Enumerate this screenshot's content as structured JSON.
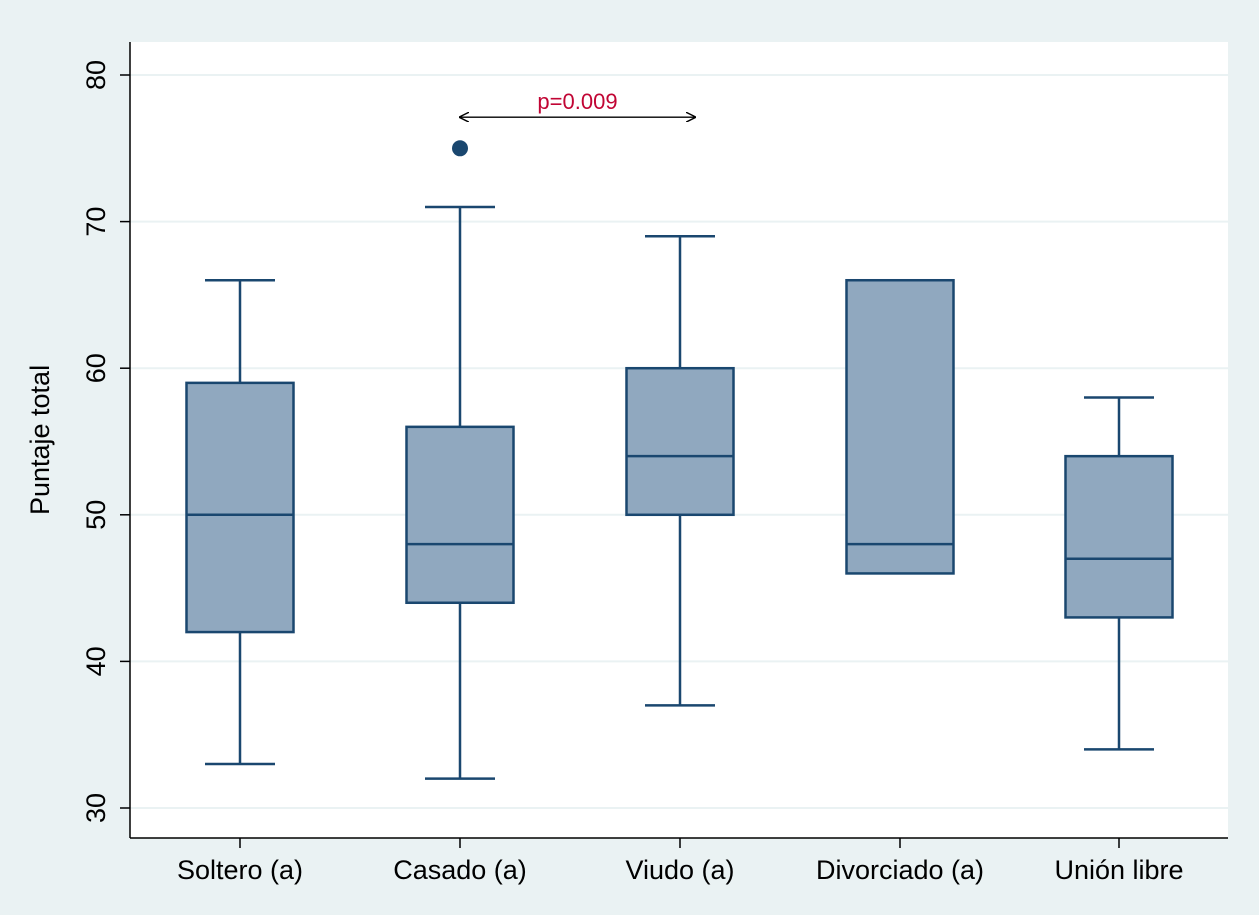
{
  "chart_data": {
    "type": "box",
    "title": "",
    "xlabel": "",
    "ylabel": "Puntaje total",
    "ylim": [
      30,
      80
    ],
    "yticks": [
      30,
      40,
      50,
      60,
      70,
      80
    ],
    "grid": true,
    "categories": [
      "Soltero (a)",
      "Casado (a)",
      "Viudo (a)",
      "Divorciado (a)",
      "Unión libre"
    ],
    "boxes": [
      {
        "category": "Soltero (a)",
        "whisker_low": 33,
        "q1": 42,
        "median": 50,
        "q3": 59,
        "whisker_high": 66,
        "outliers": []
      },
      {
        "category": "Casado (a)",
        "whisker_low": 32,
        "q1": 44,
        "median": 48,
        "q3": 56,
        "whisker_high": 71,
        "outliers": [
          75
        ]
      },
      {
        "category": "Viudo (a)",
        "whisker_low": 37,
        "q1": 50,
        "median": 54,
        "q3": 60,
        "whisker_high": 69,
        "outliers": []
      },
      {
        "category": "Divorciado (a)",
        "whisker_low": 46,
        "q1": 46,
        "median": 48,
        "q3": 66,
        "whisker_high": 66,
        "outliers": []
      },
      {
        "category": "Unión libre",
        "whisker_low": 34,
        "q1": 43,
        "median": 47,
        "q3": 54,
        "whisker_high": 58,
        "outliers": []
      }
    ],
    "annotations": [
      {
        "text": "p=0.009",
        "from_category": "Casado (a)",
        "to_category": "Viudo (a)",
        "y": 77.6
      }
    ],
    "colors": {
      "outer_background": "#eaf2f3",
      "plot_background": "#ffffff",
      "box_fill": "#90a8bf",
      "box_stroke": "#1a476f",
      "grid": "#eaf2f3",
      "annotation_text": "#c10534",
      "axis": "#000000"
    }
  }
}
